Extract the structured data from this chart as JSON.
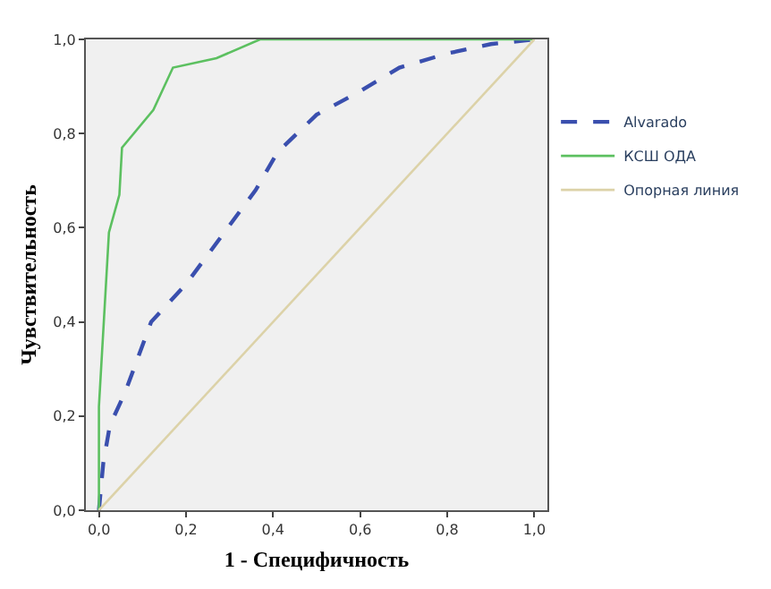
{
  "chart_data": {
    "type": "line",
    "xlabel": "1 - Специфичность",
    "ylabel": "Чувствительность",
    "xlim": [
      -0.03,
      1.03
    ],
    "ylim": [
      0,
      1.0
    ],
    "xticks": [
      {
        "value": 0,
        "label": "0,0"
      },
      {
        "value": 0.2,
        "label": "0,2"
      },
      {
        "value": 0.4,
        "label": "0,4"
      },
      {
        "value": 0.6,
        "label": "0,6"
      },
      {
        "value": 0.8,
        "label": "0,8"
      },
      {
        "value": 1.0,
        "label": "1,0"
      }
    ],
    "yticks": [
      {
        "value": 0,
        "label": "0,0"
      },
      {
        "value": 0.2,
        "label": "0,2"
      },
      {
        "value": 0.4,
        "label": "0,4"
      },
      {
        "value": 0.6,
        "label": "0,6"
      },
      {
        "value": 0.8,
        "label": "0,8"
      },
      {
        "value": 1.0,
        "label": "1,0"
      }
    ],
    "grid": false,
    "legend": "right",
    "marker": "none",
    "series": [
      {
        "name": "Alvarado",
        "color": "#3a4fae",
        "line_style": "dashed",
        "x": [
          0,
          0.01,
          0.025,
          0.06,
          0.12,
          0.2,
          0.28,
          0.36,
          0.41,
          0.5,
          0.6,
          0.69,
          0.8,
          0.9,
          1.0
        ],
        "values": [
          0,
          0.1,
          0.18,
          0.25,
          0.4,
          0.48,
          0.58,
          0.68,
          0.76,
          0.84,
          0.89,
          0.94,
          0.97,
          0.99,
          1.0
        ]
      },
      {
        "name": "КСШ ОДА",
        "color": "#5cc060",
        "line_style": "solid",
        "x": [
          0,
          0,
          0.023,
          0.047,
          0.053,
          0.125,
          0.17,
          0.27,
          0.37,
          1.0
        ],
        "values": [
          0,
          0.22,
          0.59,
          0.67,
          0.77,
          0.85,
          0.94,
          0.96,
          1.0,
          1.0
        ]
      },
      {
        "name": "Опорная линия",
        "color": "#dcd2a8",
        "line_style": "solid",
        "x": [
          0,
          1.0
        ],
        "values": [
          0,
          1.0
        ]
      }
    ]
  }
}
